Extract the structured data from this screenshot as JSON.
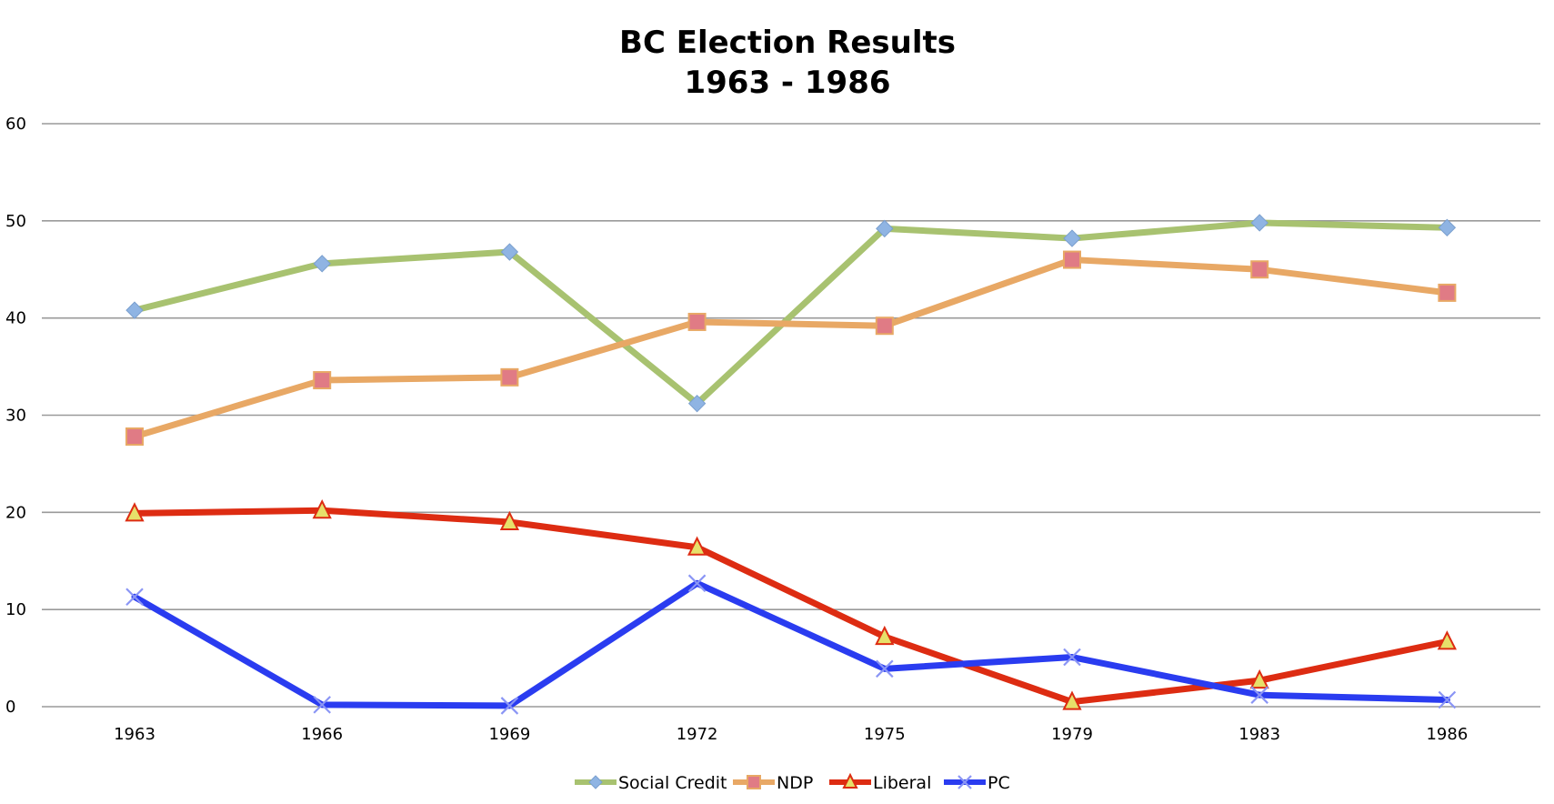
{
  "chart_data": {
    "type": "line",
    "title": "BC Election Results",
    "subtitle": "1963 - 1986",
    "xlabel": "",
    "ylabel": "",
    "categories": [
      "1963",
      "1966",
      "1969",
      "1972",
      "1975",
      "1979",
      "1983",
      "1986"
    ],
    "ylim": [
      0,
      60
    ],
    "yticks": [
      0,
      10,
      20,
      30,
      40,
      50,
      60
    ],
    "grid": true,
    "legend_position": "bottom",
    "series": [
      {
        "name": "Social Credit",
        "color": "#a8c270",
        "marker": "diamond",
        "marker_color": "#8fb4e3",
        "values": [
          40.8,
          45.6,
          46.8,
          31.2,
          49.2,
          48.2,
          49.8,
          49.3
        ]
      },
      {
        "name": "NDP",
        "color": "#e8a865",
        "marker": "square",
        "marker_color": "#e07b85",
        "values": [
          27.8,
          33.6,
          33.9,
          39.6,
          39.2,
          46.0,
          45.0,
          42.6
        ]
      },
      {
        "name": "Liberal",
        "color": "#dd2c12",
        "marker": "triangle",
        "marker_color": "#e7e06a",
        "values": [
          19.9,
          20.2,
          19.0,
          16.4,
          7.2,
          0.5,
          2.7,
          6.7
        ]
      },
      {
        "name": "PC",
        "color": "#2a3cf0",
        "marker": "x",
        "marker_color": "#8a95f5",
        "values": [
          11.3,
          0.2,
          0.1,
          12.7,
          3.9,
          5.1,
          1.2,
          0.7
        ]
      }
    ]
  }
}
